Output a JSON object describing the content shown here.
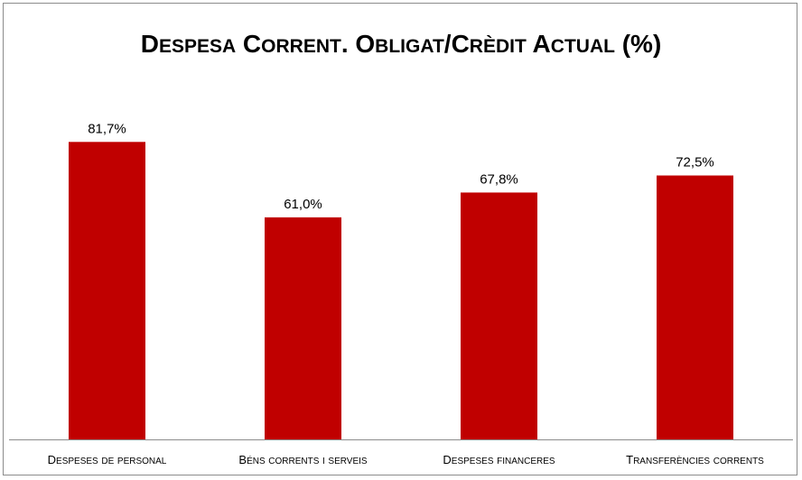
{
  "chart_data": {
    "type": "bar",
    "title": "Despesa Corrent. Obligat/Crèdit Actual (%)",
    "categories": [
      "Despeses de personal",
      "Béns corrents i serveis",
      "Despeses financeres",
      "Transferències corrents"
    ],
    "values": [
      81.7,
      61.0,
      67.8,
      72.5
    ],
    "data_labels": [
      "81,7%",
      "61,0%",
      "67,8%",
      "72,5%"
    ],
    "ylim": [
      0,
      100
    ],
    "xlabel": "",
    "ylabel": "",
    "grid": false,
    "legend": "none",
    "bar_color": "#c00000"
  }
}
